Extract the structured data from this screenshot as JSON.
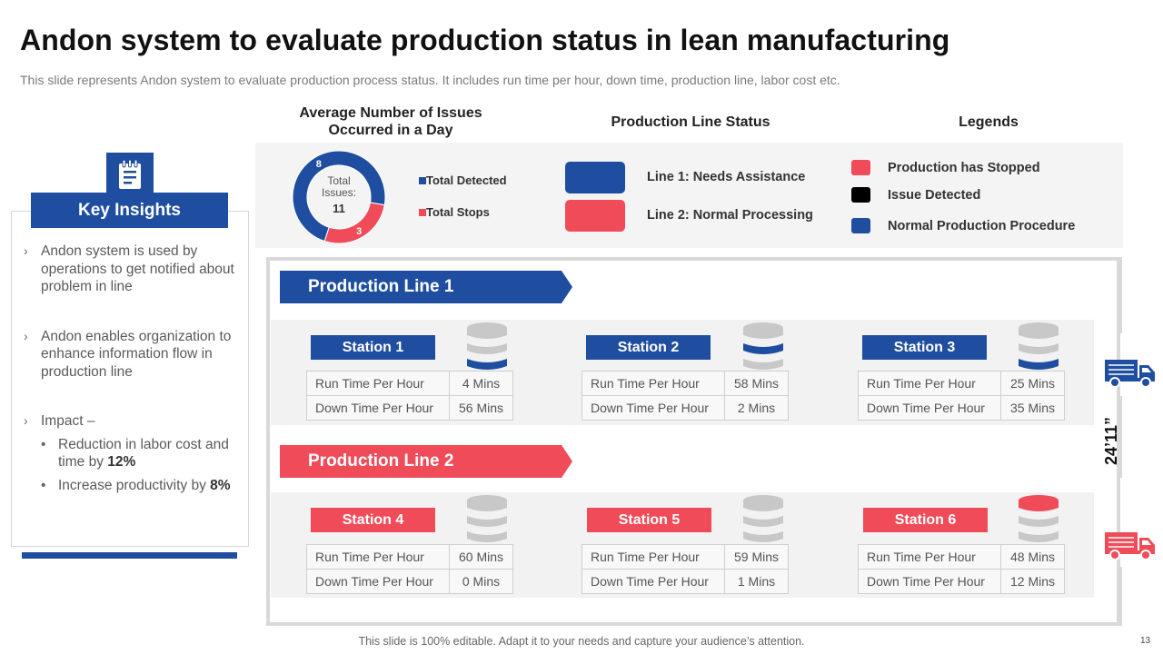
{
  "slide": {
    "title": "Andon system to evaluate production status in lean manufacturing",
    "subtitle": "This slide represents Andon system to evaluate production process status. It includes run time per hour, down time, production line, labor cost etc.",
    "footer": "This slide is 100% editable. Adapt it to your needs and capture your audience’s attention.",
    "page_number": "13"
  },
  "key_insights": {
    "header": "Key Insights",
    "icon": "clipboard-icon",
    "items": [
      "Andon system is used by operations to get notified about problem in line",
      "Andon enables organization to enhance information flow in production line",
      "Impact –"
    ],
    "sub_items": [
      {
        "text": "Reduction in labor cost and time by ",
        "highlight": "12%"
      },
      {
        "text": "Increase productivity by ",
        "highlight": "8%"
      }
    ]
  },
  "issues_chart": {
    "heading": "Average Number of Issues Occurred in a Day",
    "center_label": "Total Issues:",
    "center_value": "11",
    "legend": [
      "Total Detected",
      "Total Stops"
    ],
    "colors": {
      "detected": "#1f4ea0",
      "stops": "#f04b59"
    }
  },
  "chart_data": {
    "type": "pie",
    "title": "Average Number of Issues Occurred in a Day",
    "categories": [
      "Total Detected",
      "Total Stops"
    ],
    "values": [
      8,
      3
    ],
    "total": 11
  },
  "line_status": {
    "heading": "Production Line Status",
    "items": [
      {
        "label": "Line 1: Needs Assistance",
        "color": "#1f4ea0"
      },
      {
        "label": "Line 2: Normal Processing",
        "color": "#f04b59"
      }
    ]
  },
  "legends": {
    "heading": "Legends",
    "items": [
      {
        "label": "Production has Stopped",
        "color": "#f04b59"
      },
      {
        "label": "Issue Detected",
        "color": "#000000"
      },
      {
        "label": "Normal Production Procedure",
        "color": "#1f4ea0"
      }
    ]
  },
  "lines": [
    {
      "label": "Production Line 1",
      "color": "#1f4ea0"
    },
    {
      "label": "Production Line 2",
      "color": "#f04b59"
    }
  ],
  "row_labels": {
    "run": "Run Time Per Hour",
    "down": "Down Time Per Hour"
  },
  "stations": [
    {
      "name": "Station 1",
      "run": "4 Mins",
      "down": "56 Mins",
      "status": "normal"
    },
    {
      "name": "Station 2",
      "run": "58 Mins",
      "down": "2 Mins",
      "status": "normal"
    },
    {
      "name": "Station 3",
      "run": "25 Mins",
      "down": "35 Mins",
      "status": "normal"
    },
    {
      "name": "Station 4",
      "run": "60 Mins",
      "down": "0 Mins",
      "status": "idle"
    },
    {
      "name": "Station 5",
      "run": "59 Mins",
      "down": "1 Mins",
      "status": "idle"
    },
    {
      "name": "Station 6",
      "run": "48 Mins",
      "down": "12 Mins",
      "status": "stopped"
    }
  ],
  "timer": "24’11”",
  "trucks": [
    {
      "name": "truck-blue",
      "color": "#1f4ea0"
    },
    {
      "name": "truck-red",
      "color": "#f04b59"
    }
  ]
}
